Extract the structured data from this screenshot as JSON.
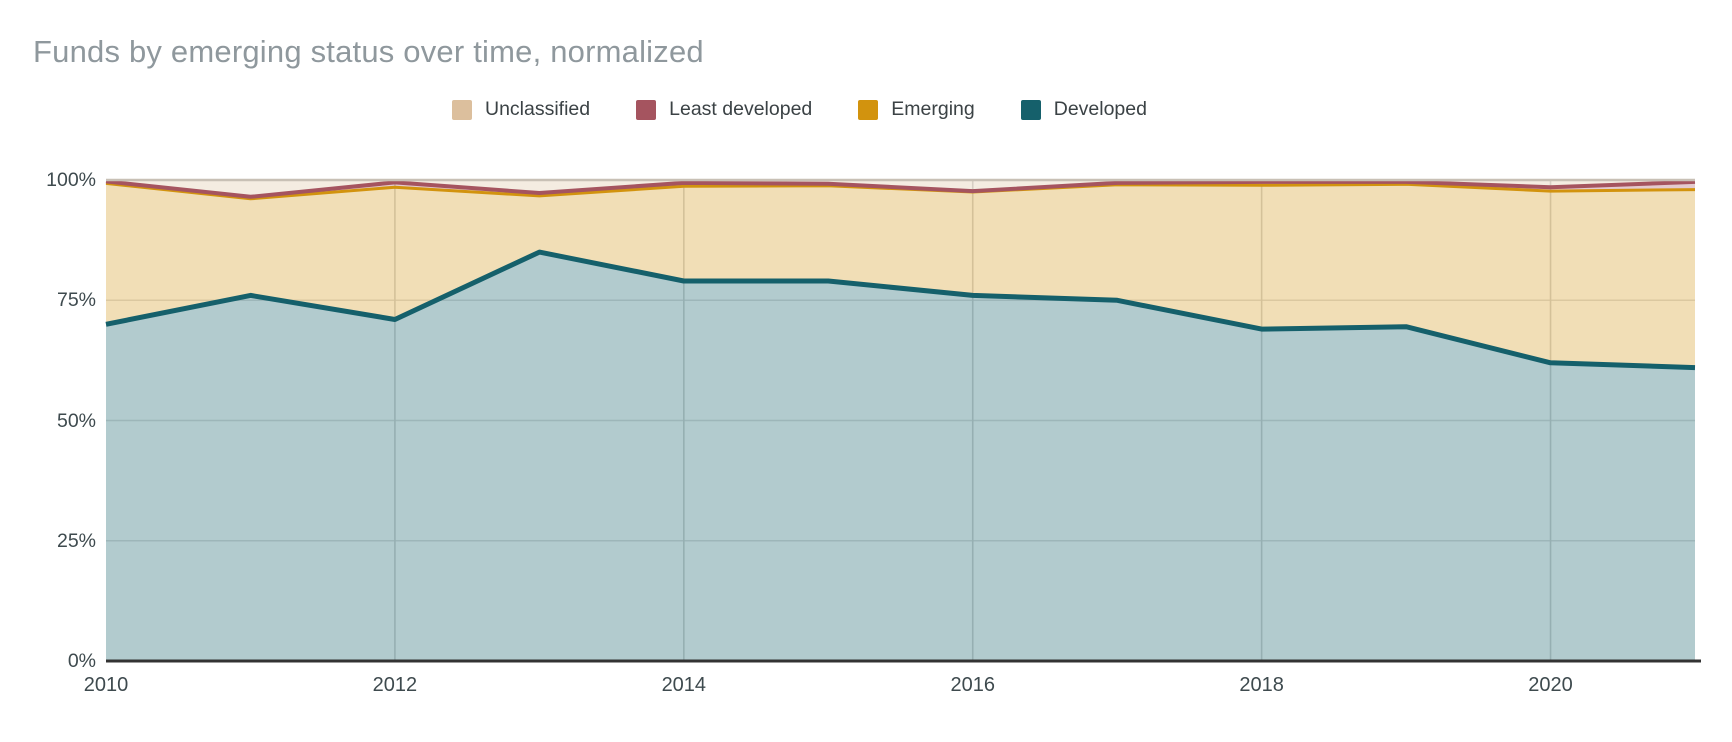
{
  "title": "Funds by emerging status over time, normalized",
  "chart_data": {
    "type": "area",
    "stacked": true,
    "normalized": true,
    "title": "Funds by emerging status over time, normalized",
    "x": [
      2010,
      2011,
      2012,
      2013,
      2014,
      2015,
      2016,
      2017,
      2018,
      2019,
      2020,
      2021
    ],
    "x_ticks": [
      "2010",
      "2012",
      "2014",
      "2016",
      "2018",
      "2020"
    ],
    "x_tick_years": [
      2010,
      2012,
      2014,
      2016,
      2018,
      2020
    ],
    "y_ticks": [
      "0%",
      "25%",
      "50%",
      "75%",
      "100%"
    ],
    "y_tick_values": [
      0,
      25,
      50,
      75,
      100
    ],
    "ylim": [
      0,
      100
    ],
    "unit": "%",
    "legend_position": "top",
    "grid": true,
    "stack_order_bottom_to_top": [
      "Developed",
      "Emerging",
      "Least developed",
      "Unclassified"
    ],
    "series": [
      {
        "name": "Unclassified",
        "color": "#dcbf9d",
        "values": [
          0.3,
          3.5,
          0.5,
          2.7,
          0.6,
          0.8,
          2.3,
          0.6,
          0.4,
          0.4,
          1.5,
          0.4
        ]
      },
      {
        "name": "Least developed",
        "color": "#a5545f",
        "values": [
          0.4,
          0.4,
          1.0,
          0.6,
          0.7,
          0.4,
          0.2,
          0.4,
          0.7,
          0.5,
          0.8,
          1.6
        ]
      },
      {
        "name": "Emerging",
        "color": "#d2930e",
        "values": [
          29.3,
          20.1,
          27.5,
          11.7,
          19.7,
          19.8,
          21.5,
          24.0,
          29.9,
          29.6,
          35.7,
          37.0
        ]
      },
      {
        "name": "Developed",
        "color": "#15606b",
        "values": [
          70.0,
          76.0,
          71.0,
          85.0,
          79.0,
          79.0,
          76.0,
          75.0,
          69.0,
          69.5,
          62.0,
          61.0
        ]
      }
    ],
    "colors": {
      "grid": "#e0e0e0",
      "grid_vertical": "#d6d6d6",
      "baseline": "#333333",
      "top_line": "#c8c0b5",
      "axis_text": "#3e4a4e",
      "title_text": "#8f989d"
    }
  }
}
